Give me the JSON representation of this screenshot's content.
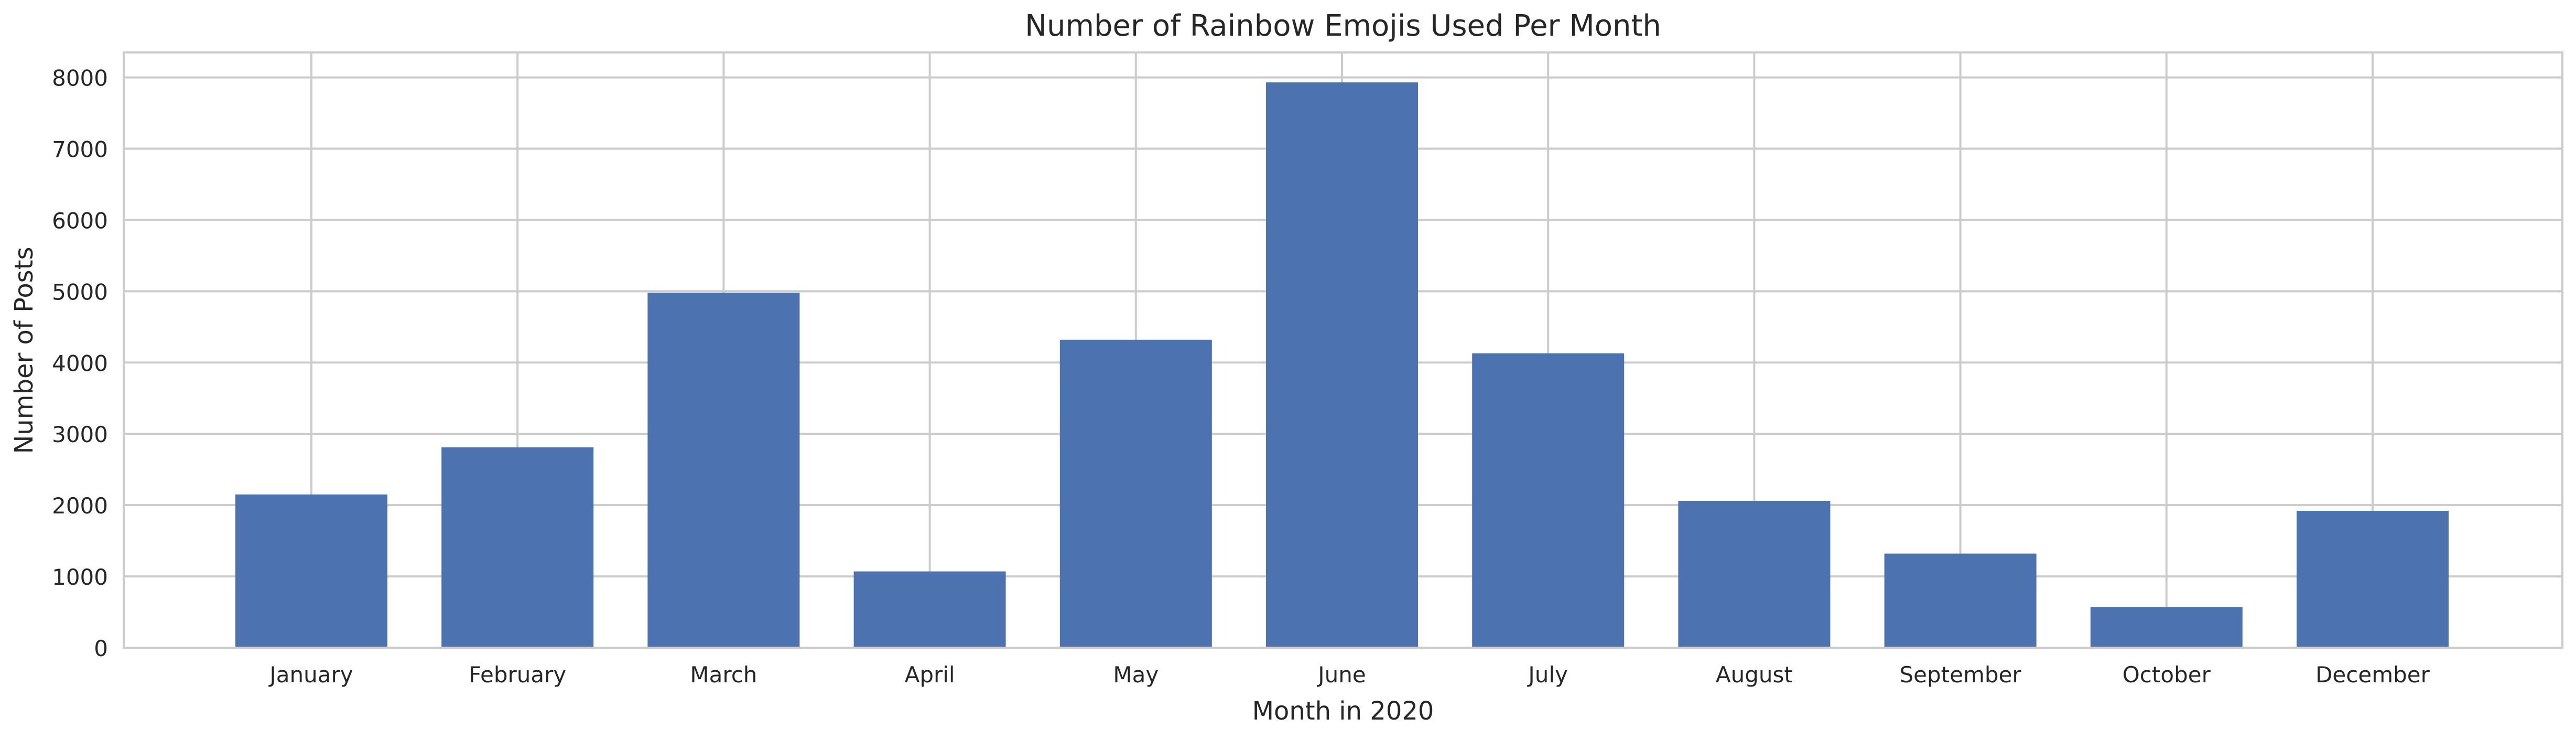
{
  "chart_data": {
    "type": "bar",
    "title": "Number of Rainbow Emojis Used Per Month",
    "xlabel": "Month in 2020",
    "ylabel": "Number of Posts",
    "categories": [
      "January",
      "February",
      "March",
      "April",
      "May",
      "June",
      "July",
      "August",
      "September",
      "October",
      "December"
    ],
    "values": [
      2150,
      2810,
      4980,
      1070,
      4320,
      7930,
      4130,
      2060,
      1320,
      570,
      1920
    ],
    "ylim": [
      0,
      8350
    ],
    "yticks": [
      0,
      1000,
      2000,
      3000,
      4000,
      5000,
      6000,
      7000,
      8000
    ],
    "grid": true,
    "legend": "none",
    "colors": {
      "bar": "#4c72b0",
      "grid": "#cccccc",
      "frame": "#cccccc",
      "text": "#262626"
    }
  }
}
